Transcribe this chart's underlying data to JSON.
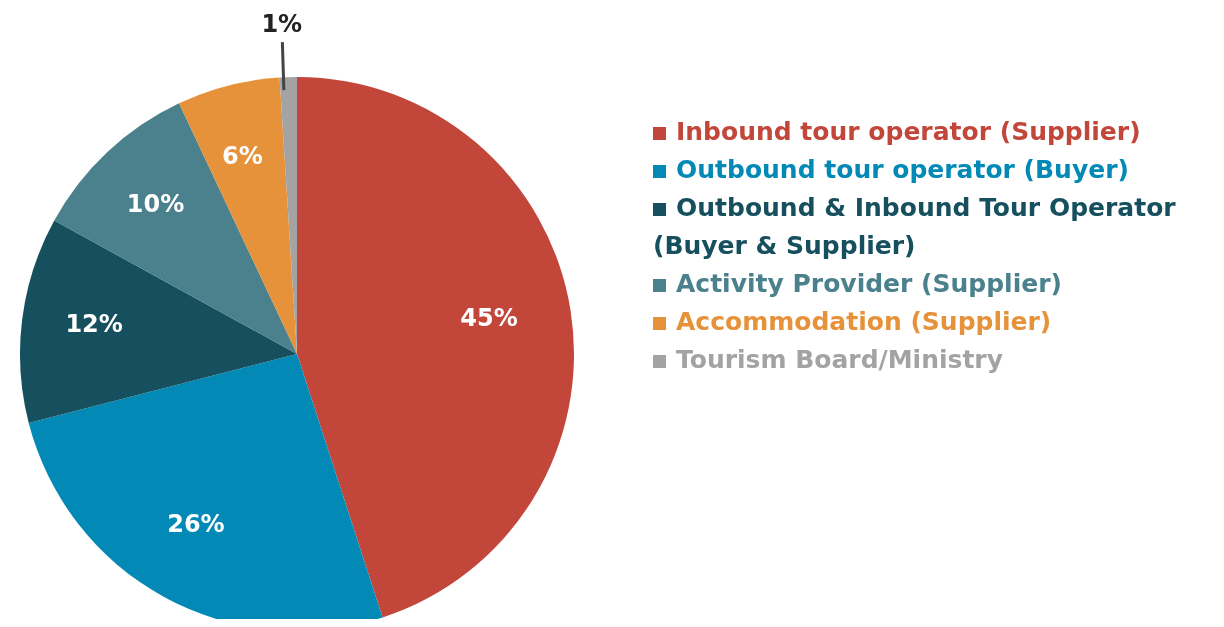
{
  "chart_data": {
    "type": "pie",
    "categories": [
      "Inbound tour operator (Supplier)",
      "Outbound tour operator (Buyer)",
      "Outbound & Inbound Tour Operator (Buyer & Supplier)",
      "Activity Provider (Supplier)",
      "Accommodation (Supplier)",
      "Tourism Board/Ministry"
    ],
    "values": [
      45,
      26,
      12,
      10,
      6,
      1
    ],
    "value_labels": [
      "45%",
      "26%",
      "12%",
      "10%",
      "6%",
      "1%"
    ],
    "colors": [
      "#c2473a",
      "#0389b6",
      "#164f5d",
      "#4a818c",
      "#e6923a",
      "#a3a3a3"
    ],
    "legend": "right"
  }
}
